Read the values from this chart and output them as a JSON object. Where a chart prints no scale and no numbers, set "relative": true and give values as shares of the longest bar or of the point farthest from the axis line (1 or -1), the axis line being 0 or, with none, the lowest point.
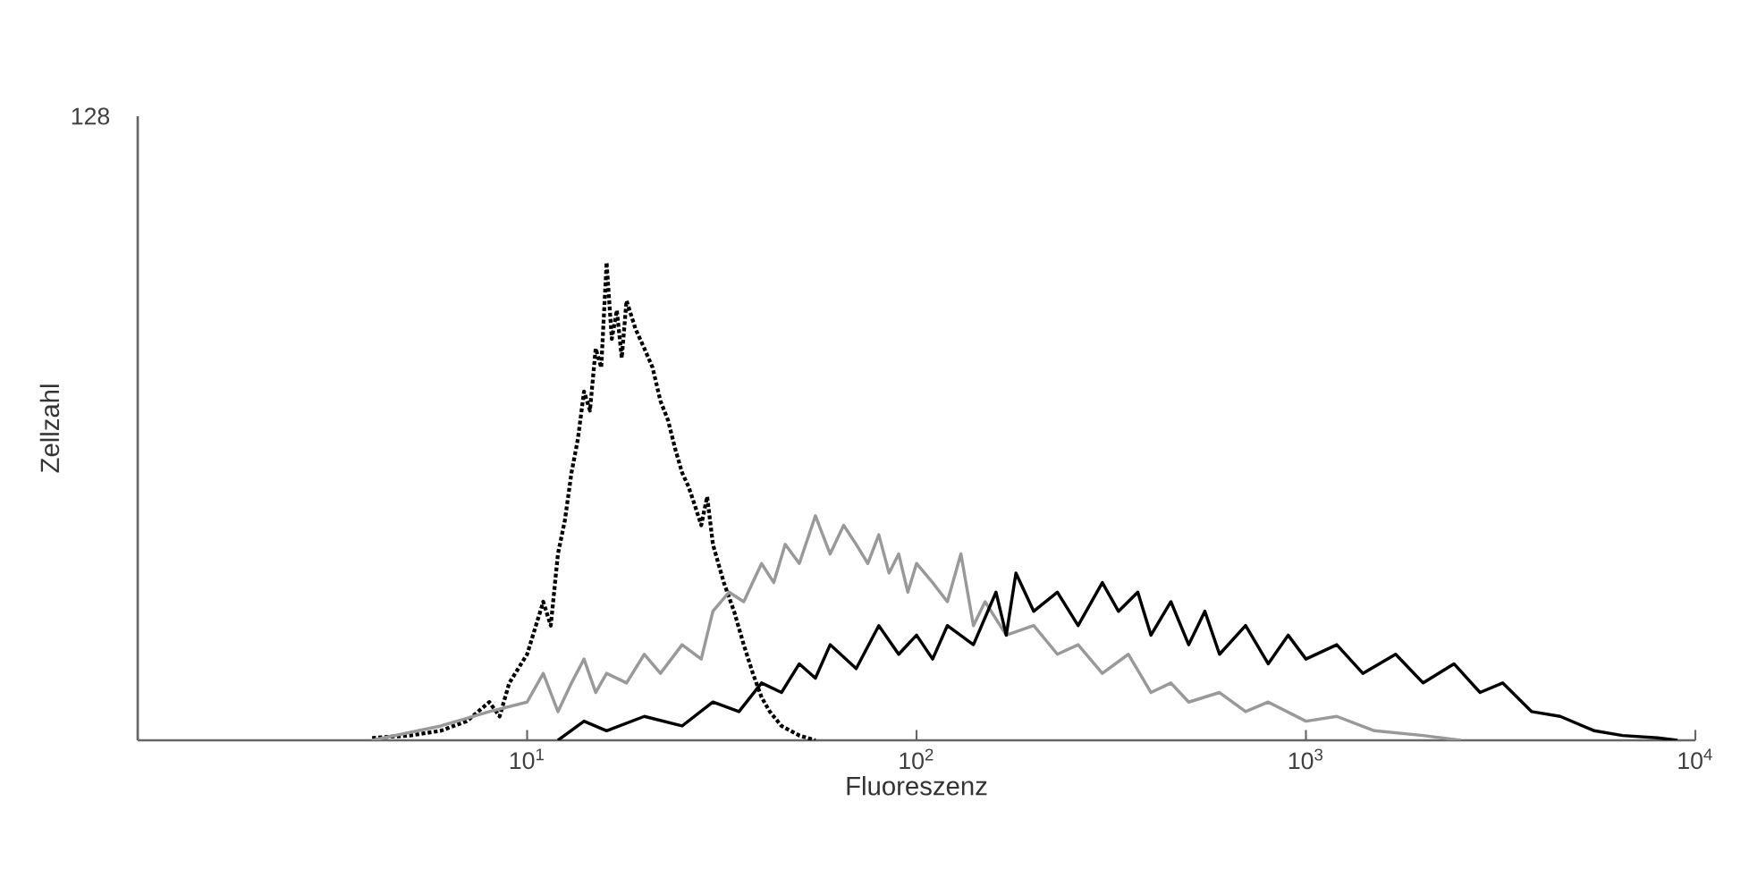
{
  "chart_data": {
    "type": "line",
    "relative": true,
    "xlabel": "Fluoreszenz",
    "ylabel": "Zellzahl",
    "log": "x",
    "grid": false,
    "marker": "none",
    "annotations": [
      "128"
    ],
    "xlim": [
      1,
      10000
    ],
    "xticks": [
      {
        "value": 1,
        "label": null
      },
      {
        "value": 10,
        "label": "10$^{1}$"
      },
      {
        "value": 100,
        "label": "10$^{2}$"
      },
      {
        "value": 1000,
        "label": "10$^{3}$"
      },
      {
        "value": 10000,
        "label": "10$^{4}$"
      }
    ],
    "series": [
      {
        "color": "#000000",
        "line_style": "dotted",
        "x": [
          4,
          5,
          6,
          7,
          8,
          8.5,
          9,
          10,
          11,
          11.5,
          12,
          12.5,
          13,
          13.5,
          14,
          14.5,
          15,
          15.5,
          16,
          16.5,
          17,
          17.5,
          18,
          19,
          20,
          21,
          22,
          23,
          24,
          25,
          26,
          27,
          28,
          29,
          30,
          32,
          34,
          36,
          38,
          40,
          42,
          45,
          50,
          55
        ],
        "values": [
          0.005,
          0.01,
          0.02,
          0.04,
          0.08,
          0.05,
          0.12,
          0.18,
          0.29,
          0.24,
          0.39,
          0.46,
          0.56,
          0.63,
          0.73,
          0.69,
          0.82,
          0.78,
          1,
          0.84,
          0.9,
          0.8,
          0.92,
          0.86,
          0.82,
          0.78,
          0.71,
          0.67,
          0.61,
          0.56,
          0.53,
          0.49,
          0.45,
          0.51,
          0.41,
          0.33,
          0.27,
          0.2,
          0.14,
          0.09,
          0.06,
          0.03,
          0.01,
          0
        ]
      },
      {
        "color": "#999999",
        "line_style": "solid",
        "x": [
          4,
          6,
          8,
          10,
          11,
          12,
          13,
          14,
          15,
          16,
          18,
          20,
          22,
          25,
          28,
          30,
          33,
          36,
          40,
          43,
          46,
          50,
          55,
          60,
          65,
          70,
          75,
          80,
          85,
          90,
          95,
          100,
          110,
          120,
          130,
          140,
          150,
          170,
          200,
          230,
          260,
          300,
          350,
          400,
          450,
          500,
          600,
          700,
          800,
          1000,
          1200,
          1500,
          2000,
          2500
        ],
        "values": [
          0,
          0.03,
          0.06,
          0.08,
          0.14,
          0.06,
          0.12,
          0.17,
          0.1,
          0.14,
          0.12,
          0.18,
          0.14,
          0.2,
          0.17,
          0.27,
          0.31,
          0.29,
          0.37,
          0.33,
          0.41,
          0.37,
          0.47,
          0.39,
          0.45,
          0.41,
          0.37,
          0.43,
          0.35,
          0.39,
          0.31,
          0.37,
          0.33,
          0.29,
          0.39,
          0.24,
          0.29,
          0.22,
          0.24,
          0.18,
          0.2,
          0.14,
          0.18,
          0.1,
          0.12,
          0.08,
          0.1,
          0.06,
          0.08,
          0.04,
          0.05,
          0.02,
          0.01,
          0
        ]
      },
      {
        "color": "#000000",
        "line_style": "solid",
        "x": [
          12,
          14,
          16,
          20,
          25,
          30,
          35,
          40,
          45,
          50,
          55,
          60,
          70,
          80,
          90,
          100,
          110,
          120,
          140,
          160,
          170,
          180,
          200,
          230,
          260,
          300,
          330,
          370,
          400,
          450,
          500,
          550,
          600,
          700,
          800,
          900,
          1000,
          1200,
          1400,
          1700,
          2000,
          2400,
          2800,
          3200,
          3800,
          4500,
          5500,
          6500,
          8000,
          9000
        ],
        "values": [
          0,
          0.04,
          0.02,
          0.05,
          0.03,
          0.08,
          0.06,
          0.12,
          0.1,
          0.16,
          0.13,
          0.2,
          0.15,
          0.24,
          0.18,
          0.22,
          0.17,
          0.24,
          0.2,
          0.31,
          0.22,
          0.35,
          0.27,
          0.31,
          0.24,
          0.33,
          0.27,
          0.31,
          0.22,
          0.29,
          0.2,
          0.27,
          0.18,
          0.24,
          0.16,
          0.22,
          0.17,
          0.2,
          0.14,
          0.18,
          0.12,
          0.16,
          0.1,
          0.12,
          0.06,
          0.05,
          0.02,
          0.01,
          0.005,
          0
        ]
      }
    ]
  }
}
